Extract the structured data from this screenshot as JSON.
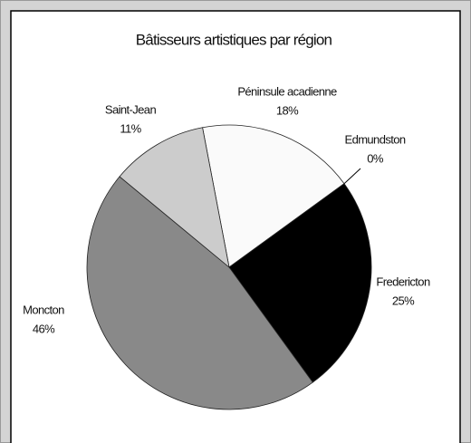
{
  "chart_data": {
    "type": "pie",
    "title": "Bâtisseurs artistiques par région",
    "categories": [
      "Péninsule acadienne",
      "Edmundston",
      "Fredericton",
      "Moncton",
      "Saint-Jean"
    ],
    "values": [
      18,
      0,
      25,
      46,
      11
    ],
    "value_labels": [
      "18%",
      "0%",
      "25%",
      "46%",
      "11%"
    ],
    "colors": [
      "#fafafa",
      "#666666",
      "#000000",
      "#898989",
      "#cccccc"
    ]
  }
}
